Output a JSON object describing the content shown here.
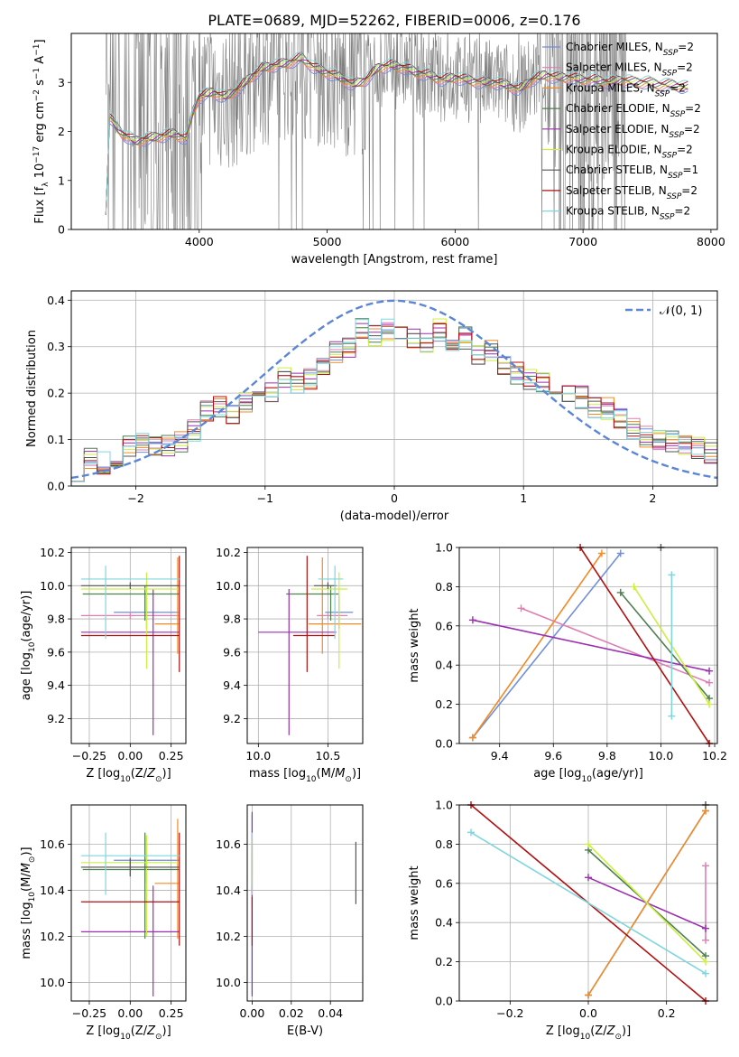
{
  "figure": {
    "title": "PLATE=0689, MJD=52262, FIBERID=0006, z=0.176"
  },
  "colors": {
    "gray": "#808080",
    "grid": "#b0b0b0",
    "normal": "#5b86d6",
    "models": [
      "#6f8fd8",
      "#de7fb4",
      "#f28a25",
      "#4f7f4f",
      "#9b2fb0",
      "#ccee44",
      "#555555",
      "#b11010",
      "#7fd6de"
    ]
  },
  "chart_data": [
    {
      "id": "spectrum",
      "type": "line",
      "xlabel": "wavelength [Angstrom, rest frame]",
      "ylabel": "Flux [f_λ 10^-17 erg cm^-2 s^-1 A^-1]",
      "xlim": [
        3000,
        8050
      ],
      "ylim": [
        0,
        4
      ],
      "xticks": [
        4000,
        5000,
        6000,
        7000,
        8000
      ],
      "yticks": [
        0,
        1,
        2,
        3
      ],
      "grid": false,
      "legend_loc": "upper right",
      "legend": [
        "Chabrier MILES, N_SSP=2",
        "Salpeter MILES, N_SSP=2",
        "Kroupa MILES, N_SSP=2",
        "Chabrier ELODIE, N_SSP=2",
        "Salpeter ELODIE, N_SSP=2",
        "Kroupa ELODIE, N_SSP=2",
        "Chabrier STELIB, N_SSP=1",
        "Salpeter STELIB, N_SSP=2",
        "Kroupa STELIB, N_SSP=2"
      ],
      "model_continuum": {
        "x": [
          3300,
          3350,
          3400,
          3500,
          3600,
          3700,
          3800,
          3900,
          3950,
          4000,
          4100,
          4200,
          4300,
          4400,
          4500,
          4600,
          4700,
          4800,
          4900,
          5000,
          5100,
          5200,
          5300,
          5400,
          5500,
          5600,
          5700,
          5800,
          5900,
          6000,
          6100,
          6200,
          6300,
          6400,
          6500,
          6600,
          6700,
          6800,
          6900,
          7000,
          7100,
          7200,
          7300,
          7400,
          7500,
          7600,
          7700,
          7800
        ],
        "y": [
          2.3,
          2.1,
          1.95,
          1.8,
          1.85,
          1.9,
          1.95,
          1.85,
          2.4,
          2.7,
          2.8,
          2.7,
          2.85,
          3.1,
          3.3,
          3.35,
          3.4,
          3.5,
          3.3,
          3.2,
          3.1,
          2.95,
          3.05,
          3.3,
          3.35,
          3.3,
          3.2,
          3.15,
          3.05,
          3.1,
          3.05,
          3.0,
          3.0,
          2.95,
          2.85,
          3.05,
          3.15,
          3.1,
          3.1,
          3.05,
          3.05,
          3.0,
          3.05,
          3.0,
          3.0,
          2.95,
          2.95,
          2.9
        ]
      }
    },
    {
      "id": "residuals",
      "type": "step",
      "xlabel": "(data-model)/error",
      "ylabel": "Normed distribution",
      "xlim": [
        -2.5,
        2.5
      ],
      "ylim": [
        0,
        0.42
      ],
      "xticks": [
        -2,
        -1,
        0,
        1,
        2
      ],
      "yticks": [
        0.0,
        0.1,
        0.2,
        0.3,
        0.4
      ],
      "grid": true,
      "legend_loc": "upper right",
      "legend": [
        "𝒩(0, 1)"
      ],
      "normal": {
        "mean": 0,
        "std": 1
      },
      "bin_width": 0.1,
      "centers": [
        -2.45,
        -2.35,
        -2.25,
        -2.15,
        -2.05,
        -1.95,
        -1.85,
        -1.75,
        -1.65,
        -1.55,
        -1.45,
        -1.35,
        -1.25,
        -1.15,
        -1.05,
        -0.95,
        -0.85,
        -0.75,
        -0.65,
        -0.55,
        -0.45,
        -0.35,
        -0.25,
        -0.15,
        -0.05,
        0.05,
        0.15,
        0.25,
        0.35,
        0.45,
        0.55,
        0.65,
        0.75,
        0.85,
        0.95,
        1.05,
        1.15,
        1.25,
        1.35,
        1.45,
        1.55,
        1.65,
        1.75,
        1.85,
        1.95,
        2.05,
        2.15,
        2.25,
        2.35,
        2.45
      ],
      "base_values": [
        0.032,
        0.062,
        0.05,
        0.062,
        0.085,
        0.092,
        0.082,
        0.088,
        0.098,
        0.118,
        0.162,
        0.168,
        0.152,
        0.182,
        0.208,
        0.202,
        0.232,
        0.222,
        0.232,
        0.262,
        0.288,
        0.302,
        0.342,
        0.322,
        0.338,
        0.332,
        0.318,
        0.312,
        0.336,
        0.298,
        0.318,
        0.278,
        0.292,
        0.262,
        0.242,
        0.232,
        0.222,
        0.208,
        0.202,
        0.192,
        0.168,
        0.168,
        0.142,
        0.122,
        0.108,
        0.102,
        0.098,
        0.092,
        0.08,
        0.07
      ]
    },
    {
      "id": "z-age",
      "type": "errorbar",
      "xlabel": "Z [log10(Z/Z☉)]",
      "ylabel": "age [log10(age/yr)]",
      "xlim": [
        -0.36,
        0.34
      ],
      "ylim": [
        9.05,
        10.23
      ],
      "xticks": [
        -0.25,
        0.0,
        0.25
      ],
      "yticks": [
        9.2,
        9.4,
        9.6,
        9.8,
        10.0,
        10.2
      ],
      "grid": true,
      "points": [
        {
          "x": 0.1,
          "y": 9.84,
          "xerr": [
            0.2,
            0.2
          ],
          "yerr": [
            0.1,
            0.1
          ]
        },
        {
          "x": 0.0,
          "y": 9.82,
          "xerr": [
            0.3,
            0.3
          ],
          "yerr": [
            0.02,
            0.02
          ]
        },
        {
          "x": 0.29,
          "y": 9.77,
          "xerr": [
            0.14,
            0.01
          ],
          "yerr": [
            0.18,
            0.4
          ]
        },
        {
          "x": 0.09,
          "y": 9.95,
          "xerr": [
            0.38,
            0.21
          ],
          "yerr": [
            0.16,
            0.05
          ]
        },
        {
          "x": 0.14,
          "y": 9.72,
          "xerr": [
            0.44,
            0.16
          ],
          "yerr": [
            0.62,
            0.26
          ]
        },
        {
          "x": 0.1,
          "y": 9.98,
          "xerr": [
            0.4,
            0.2
          ],
          "yerr": [
            0.48,
            0.1
          ]
        },
        {
          "x": 0.0,
          "y": 10.0,
          "xerr": [
            0.3,
            0.3
          ],
          "yerr": [
            0.02,
            0.02
          ]
        },
        {
          "x": 0.3,
          "y": 9.7,
          "xerr": [
            0.6,
            0.0
          ],
          "yerr": [
            0.22,
            0.48
          ]
        },
        {
          "x": -0.15,
          "y": 10.04,
          "xerr": [
            0.15,
            0.45
          ],
          "yerr": [
            0.36,
            0.08
          ]
        }
      ]
    },
    {
      "id": "mass-age",
      "type": "errorbar",
      "xlabel": "mass [log10(M/M☉)]",
      "ylabel": "",
      "xlim": [
        9.92,
        10.75
      ],
      "ylim": [
        9.05,
        10.23
      ],
      "xticks": [
        10.0,
        10.5
      ],
      "yticks": [
        9.2,
        9.4,
        9.6,
        9.8,
        10.0,
        10.2
      ],
      "grid": true,
      "points": [
        {
          "x": 10.58,
          "y": 9.84,
          "xerr": [
            0.1,
            0.1
          ],
          "yerr": [
            0.1,
            0.1
          ]
        },
        {
          "x": 10.5,
          "y": 9.82,
          "xerr": [
            0.08,
            0.14
          ],
          "yerr": [
            0.02,
            0.02
          ]
        },
        {
          "x": 10.46,
          "y": 9.77,
          "xerr": [
            0.1,
            0.28
          ],
          "yerr": [
            0.18,
            0.4
          ]
        },
        {
          "x": 10.52,
          "y": 9.95,
          "xerr": [
            0.32,
            0.06
          ],
          "yerr": [
            0.16,
            0.05
          ]
        },
        {
          "x": 10.22,
          "y": 9.72,
          "xerr": [
            0.22,
            0.34
          ],
          "yerr": [
            0.62,
            0.26
          ]
        },
        {
          "x": 10.58,
          "y": 9.98,
          "xerr": [
            0.2,
            0.06
          ],
          "yerr": [
            0.48,
            0.1
          ]
        },
        {
          "x": 10.5,
          "y": 10.0,
          "xerr": [
            0.1,
            0.06
          ],
          "yerr": [
            0.02,
            0.02
          ]
        },
        {
          "x": 10.35,
          "y": 9.7,
          "xerr": [
            0.1,
            0.2
          ],
          "yerr": [
            0.22,
            0.48
          ]
        },
        {
          "x": 10.55,
          "y": 10.04,
          "xerr": [
            0.12,
            0.06
          ],
          "yerr": [
            0.36,
            0.08
          ]
        }
      ]
    },
    {
      "id": "age-weight",
      "type": "line",
      "xlabel": "age [log10(age/yr)]",
      "ylabel": "mass weight",
      "xlim": [
        9.25,
        10.21
      ],
      "ylim": [
        0,
        1
      ],
      "xticks": [
        9.4,
        9.6,
        9.8,
        10.0,
        10.2
      ],
      "yticks": [
        0.0,
        0.2,
        0.4,
        0.6,
        0.8,
        1.0
      ],
      "grid": true,
      "series": [
        {
          "x": [
            9.3,
            9.85
          ],
          "y": [
            0.03,
            0.97
          ]
        },
        {
          "x": [
            9.48,
            10.18
          ],
          "y": [
            0.69,
            0.31
          ]
        },
        {
          "x": [
            9.3,
            9.78
          ],
          "y": [
            0.03,
            0.97
          ]
        },
        {
          "x": [
            9.85,
            10.18
          ],
          "y": [
            0.77,
            0.23
          ]
        },
        {
          "x": [
            9.3,
            10.18
          ],
          "y": [
            0.63,
            0.37
          ]
        },
        {
          "x": [
            9.9,
            10.18
          ],
          "y": [
            0.8,
            0.2
          ]
        },
        {
          "x": [
            10.0
          ],
          "y": [
            1.0
          ]
        },
        {
          "x": [
            9.7,
            10.18
          ],
          "y": [
            1.0,
            0.0
          ]
        },
        {
          "x": [
            10.04,
            10.04
          ],
          "y": [
            0.86,
            0.14
          ]
        }
      ]
    },
    {
      "id": "z-mass",
      "type": "errorbar",
      "xlabel": "Z [log10(Z/Z☉)]",
      "ylabel": "mass [log10(M/M☉)]",
      "xlim": [
        -0.36,
        0.34
      ],
      "ylim": [
        9.92,
        10.77
      ],
      "xticks": [
        -0.25,
        0.0,
        0.25
      ],
      "yticks": [
        10.0,
        10.2,
        10.4,
        10.6
      ],
      "grid": true,
      "points": [
        {
          "x": 0.1,
          "y": 10.53,
          "xerr": [
            0.2,
            0.2
          ],
          "yerr": [
            0.1,
            0.1
          ]
        },
        {
          "x": 0.0,
          "y": 10.5,
          "xerr": [
            0.3,
            0.3
          ],
          "yerr": [
            0.04,
            0.04
          ]
        },
        {
          "x": 0.29,
          "y": 10.43,
          "xerr": [
            0.14,
            0.01
          ],
          "yerr": [
            0.24,
            0.28
          ]
        },
        {
          "x": 0.09,
          "y": 10.49,
          "xerr": [
            0.38,
            0.21
          ],
          "yerr": [
            0.3,
            0.16
          ]
        },
        {
          "x": 0.14,
          "y": 10.22,
          "xerr": [
            0.44,
            0.16
          ],
          "yerr": [
            0.28,
            0.2
          ]
        },
        {
          "x": 0.1,
          "y": 10.52,
          "xerr": [
            0.4,
            0.2
          ],
          "yerr": [
            0.32,
            0.12
          ]
        },
        {
          "x": 0.0,
          "y": 10.5,
          "xerr": [
            0.3,
            0.3
          ],
          "yerr": [
            0.04,
            0.04
          ]
        },
        {
          "x": 0.3,
          "y": 10.35,
          "xerr": [
            0.6,
            0.0
          ],
          "yerr": [
            0.19,
            0.3
          ]
        },
        {
          "x": -0.15,
          "y": 10.55,
          "xerr": [
            0.15,
            0.45
          ],
          "yerr": [
            0.17,
            0.1
          ]
        }
      ]
    },
    {
      "id": "ebv-mass",
      "type": "errorbar",
      "xlabel": "E(B-V)",
      "ylabel": "",
      "xlim": [
        -0.0025,
        0.0565
      ],
      "ylim": [
        9.92,
        10.77
      ],
      "xticks": [
        0.0,
        0.02,
        0.04
      ],
      "yticks": [
        10.0,
        10.2,
        10.4,
        10.6
      ],
      "grid": true,
      "points": [
        {
          "x": 0.0,
          "y": 10.53,
          "xerr": [
            0,
            0
          ],
          "yerr": [
            0.58,
            0.2
          ]
        },
        {
          "x": 0.0,
          "y": 10.5,
          "xerr": [
            0,
            0
          ],
          "yerr": [
            0.04,
            0.04
          ]
        },
        {
          "x": 0.0,
          "y": 10.43,
          "xerr": [
            0,
            0
          ],
          "yerr": [
            0.1,
            0.2
          ]
        },
        {
          "x": 0.0,
          "y": 10.49,
          "xerr": [
            0,
            0
          ],
          "yerr": [
            0.1,
            0.1
          ]
        },
        {
          "x": 0.0,
          "y": 10.22,
          "xerr": [
            0,
            0
          ],
          "yerr": [
            0.28,
            0.52
          ]
        },
        {
          "x": 0.0,
          "y": 10.52,
          "xerr": [
            0,
            0
          ],
          "yerr": [
            0.1,
            0.1
          ]
        },
        {
          "x": 0.053,
          "y": 10.48,
          "xerr": [
            0,
            0
          ],
          "yerr": [
            0.14,
            0.13
          ]
        },
        {
          "x": 0.0,
          "y": 10.35,
          "xerr": [
            0,
            0
          ],
          "yerr": [
            0.19,
            0.02
          ]
        },
        {
          "x": 0.0,
          "y": 10.55,
          "xerr": [
            0,
            0
          ],
          "yerr": [
            0.17,
            0.1
          ]
        }
      ]
    },
    {
      "id": "z-weight",
      "type": "line",
      "xlabel": "Z [log10(Z/Z☉)]",
      "ylabel": "mass weight",
      "xlim": [
        -0.33,
        0.33
      ],
      "ylim": [
        0,
        1
      ],
      "xticks": [
        -0.2,
        0.0,
        0.2
      ],
      "yticks": [
        0.0,
        0.2,
        0.4,
        0.6,
        0.8,
        1.0
      ],
      "grid": true,
      "series": [
        {
          "x": [
            0.0,
            0.3
          ],
          "y": [
            0.03,
            0.97
          ]
        },
        {
          "x": [
            0.3,
            0.3
          ],
          "y": [
            0.69,
            0.31
          ]
        },
        {
          "x": [
            0.0,
            0.3
          ],
          "y": [
            0.03,
            0.97
          ]
        },
        {
          "x": [
            0.0,
            0.3
          ],
          "y": [
            0.77,
            0.23
          ]
        },
        {
          "x": [
            0.0,
            0.3
          ],
          "y": [
            0.63,
            0.37
          ]
        },
        {
          "x": [
            0.0,
            0.3
          ],
          "y": [
            0.8,
            0.2
          ]
        },
        {
          "x": [
            0.3
          ],
          "y": [
            1.0
          ]
        },
        {
          "x": [
            -0.3,
            0.3
          ],
          "y": [
            1.0,
            0.0
          ]
        },
        {
          "x": [
            -0.3,
            0.3
          ],
          "y": [
            0.86,
            0.14
          ]
        }
      ]
    }
  ]
}
